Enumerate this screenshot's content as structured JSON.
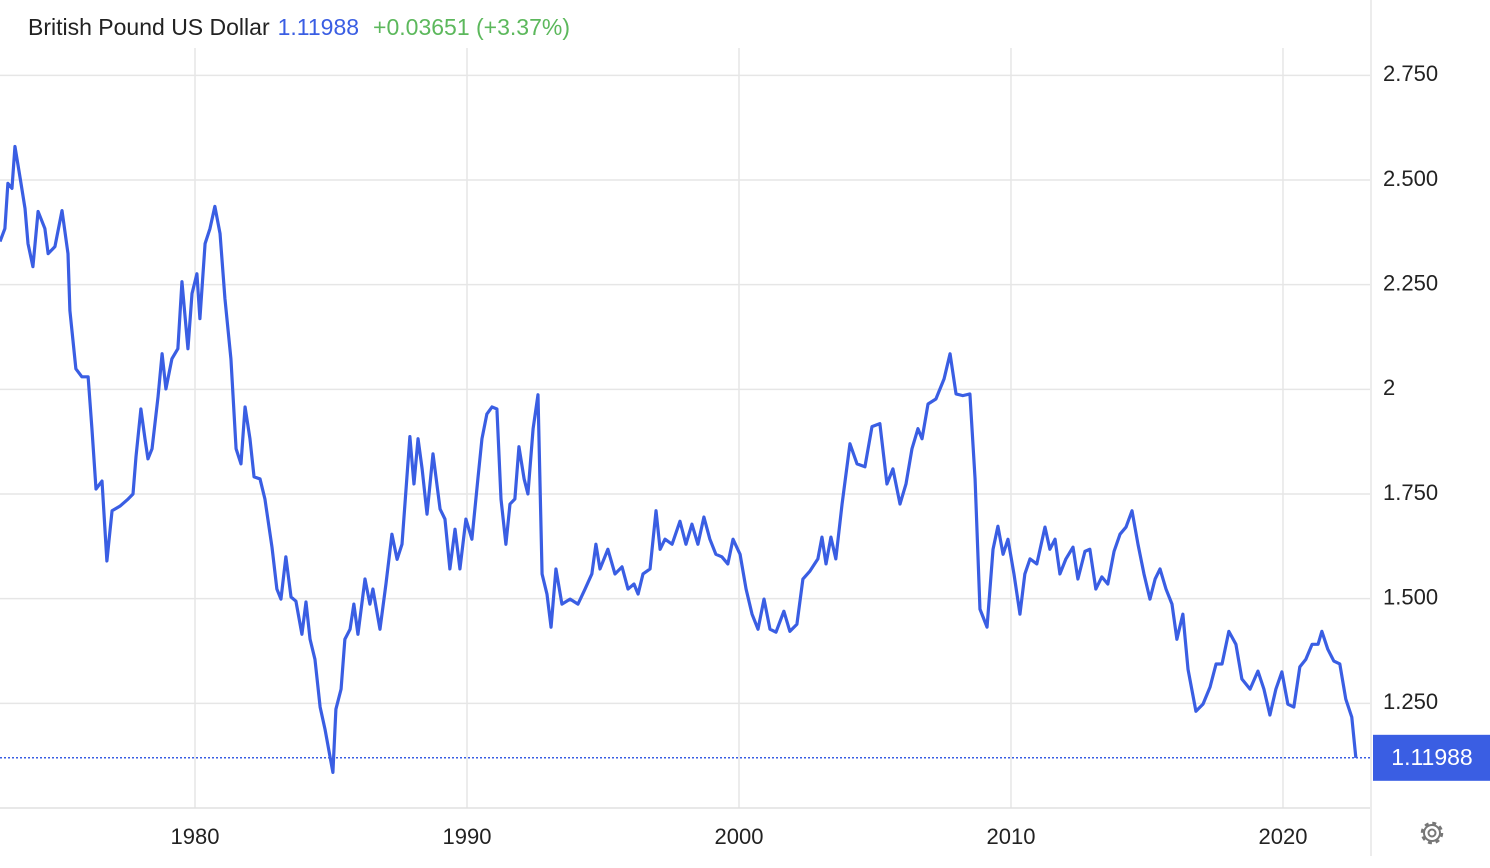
{
  "chart_data": {
    "type": "line",
    "title": "British Pound US Dollar",
    "price": 1.11988,
    "change": "+0.03651 (+3.37%)",
    "xlim": [
      1972.83,
      2023.2
    ],
    "xticks": [
      1980,
      1990,
      2000,
      2010,
      2020
    ],
    "ylim": [
      1.0,
      2.93
    ],
    "yticks": [
      {
        "value": 1.25,
        "label": "1.250"
      },
      {
        "value": 1.5,
        "label": "1.500"
      },
      {
        "value": 1.75,
        "label": "1.750"
      },
      2,
      {
        "value": 2.25,
        "label": "2.250"
      },
      {
        "value": 2.5,
        "label": "2.500"
      },
      {
        "value": 2.75,
        "label": "2.750"
      }
    ],
    "grid": true,
    "series": [
      {
        "color": "#3a5ee3",
        "x": [
          1972.83,
          1973.01,
          1973.12,
          1973.27,
          1973.38,
          1973.57,
          1973.75,
          1973.86,
          1974.04,
          1974.23,
          1974.48,
          1974.6,
          1974.85,
          1975.11,
          1975.33,
          1975.4,
          1975.62,
          1975.84,
          1976.07,
          1976.21,
          1976.36,
          1976.58,
          1976.76,
          1976.95,
          1977.24,
          1977.54,
          1977.72,
          1977.83,
          1978.01,
          1978.16,
          1978.27,
          1978.42,
          1978.64,
          1978.79,
          1978.93,
          1979.15,
          1979.37,
          1979.52,
          1979.74,
          1979.89,
          1980.07,
          1980.18,
          1980.37,
          1980.55,
          1980.73,
          1980.92,
          1981.1,
          1981.32,
          1981.51,
          1981.69,
          1981.84,
          1982.02,
          1982.17,
          1982.39,
          1982.57,
          1982.83,
          1983.01,
          1983.16,
          1983.34,
          1983.53,
          1983.71,
          1983.93,
          1984.08,
          1984.23,
          1984.41,
          1984.6,
          1984.78,
          1985.07,
          1985.18,
          1985.37,
          1985.51,
          1985.7,
          1985.84,
          1985.99,
          1986.25,
          1986.43,
          1986.54,
          1986.8,
          1987.02,
          1987.24,
          1987.43,
          1987.61,
          1987.9,
          1988.05,
          1988.2,
          1988.35,
          1988.53,
          1988.75,
          1989.01,
          1989.19,
          1989.37,
          1989.56,
          1989.74,
          1989.96,
          1990.18,
          1990.4,
          1990.55,
          1990.73,
          1990.92,
          1991.1,
          1991.25,
          1991.43,
          1991.58,
          1991.76,
          1991.91,
          1992.1,
          1992.24,
          1992.43,
          1992.61,
          1992.76,
          1992.94,
          1993.09,
          1993.27,
          1993.49,
          1993.79,
          1994.08,
          1994.34,
          1994.59,
          1994.74,
          1994.89,
          1995.18,
          1995.44,
          1995.7,
          1995.92,
          1996.14,
          1996.29,
          1996.47,
          1996.73,
          1996.95,
          1997.1,
          1997.28,
          1997.54,
          1997.83,
          1998.05,
          1998.27,
          1998.49,
          1998.71,
          1998.93,
          1999.15,
          1999.37,
          1999.59,
          1999.78,
          2000.04,
          2000.26,
          2000.48,
          2000.7,
          2000.92,
          2001.14,
          2001.36,
          2001.65,
          2001.87,
          2002.13,
          2002.35,
          2002.61,
          2002.9,
          2003.05,
          2003.2,
          2003.38,
          2003.56,
          2003.79,
          2004.08,
          2004.34,
          2004.63,
          2004.89,
          2005.18,
          2005.44,
          2005.66,
          2005.92,
          2006.14,
          2006.36,
          2006.58,
          2006.73,
          2006.95,
          2007.24,
          2007.54,
          2007.76,
          2007.98,
          2008.23,
          2008.49,
          2008.68,
          2008.86,
          2009.12,
          2009.34,
          2009.52,
          2009.71,
          2009.89,
          2010.11,
          2010.33,
          2010.51,
          2010.7,
          2010.95,
          2011.25,
          2011.43,
          2011.62,
          2011.8,
          2012.02,
          2012.28,
          2012.46,
          2012.72,
          2012.9,
          2013.12,
          2013.34,
          2013.56,
          2013.79,
          2014.01,
          2014.23,
          2014.45,
          2014.67,
          2014.89,
          2015.11,
          2015.3,
          2015.48,
          2015.7,
          2015.92,
          2016.1,
          2016.32,
          2016.51,
          2016.8,
          2017.06,
          2017.32,
          2017.54,
          2017.76,
          2018.01,
          2018.27,
          2018.49,
          2018.79,
          2019.08,
          2019.3,
          2019.52,
          2019.74,
          2019.96,
          2020.18,
          2020.4,
          2020.62,
          2020.84,
          2021.07,
          2021.29,
          2021.43,
          2021.65,
          2021.87,
          2022.09,
          2022.31,
          2022.53,
          2022.68
        ],
        "values": [
          2.353,
          2.384,
          2.492,
          2.48,
          2.58,
          2.505,
          2.432,
          2.348,
          2.293,
          2.425,
          2.384,
          2.324,
          2.341,
          2.427,
          2.324,
          2.188,
          2.049,
          2.03,
          2.03,
          1.906,
          1.762,
          1.781,
          1.59,
          1.71,
          1.721,
          1.738,
          1.75,
          1.839,
          1.953,
          1.882,
          1.834,
          1.858,
          1.982,
          2.085,
          2.001,
          2.073,
          2.097,
          2.257,
          2.097,
          2.229,
          2.276,
          2.169,
          2.348,
          2.384,
          2.437,
          2.372,
          2.217,
          2.073,
          1.858,
          1.822,
          1.958,
          1.882,
          1.791,
          1.786,
          1.738,
          1.623,
          1.523,
          1.499,
          1.6,
          1.504,
          1.494,
          1.415,
          1.492,
          1.403,
          1.355,
          1.241,
          1.188,
          1.085,
          1.236,
          1.284,
          1.403,
          1.427,
          1.487,
          1.415,
          1.547,
          1.487,
          1.523,
          1.427,
          1.535,
          1.654,
          1.594,
          1.63,
          1.887,
          1.774,
          1.882,
          1.81,
          1.702,
          1.846,
          1.714,
          1.69,
          1.571,
          1.666,
          1.571,
          1.69,
          1.642,
          1.786,
          1.882,
          1.941,
          1.958,
          1.953,
          1.738,
          1.63,
          1.726,
          1.738,
          1.863,
          1.786,
          1.75,
          1.906,
          1.987,
          1.559,
          1.511,
          1.432,
          1.571,
          1.487,
          1.499,
          1.487,
          1.523,
          1.559,
          1.63,
          1.571,
          1.618,
          1.559,
          1.576,
          1.523,
          1.535,
          1.511,
          1.559,
          1.571,
          1.71,
          1.618,
          1.642,
          1.63,
          1.685,
          1.63,
          1.678,
          1.63,
          1.695,
          1.642,
          1.606,
          1.6,
          1.583,
          1.642,
          1.606,
          1.523,
          1.463,
          1.427,
          1.499,
          1.427,
          1.42,
          1.47,
          1.422,
          1.439,
          1.547,
          1.566,
          1.595,
          1.647,
          1.583,
          1.647,
          1.595,
          1.726,
          1.87,
          1.822,
          1.815,
          1.911,
          1.918,
          1.774,
          1.81,
          1.726,
          1.774,
          1.858,
          1.906,
          1.882,
          1.965,
          1.977,
          2.025,
          2.085,
          1.989,
          1.985,
          1.989,
          1.786,
          1.475,
          1.432,
          1.618,
          1.673,
          1.606,
          1.642,
          1.559,
          1.463,
          1.559,
          1.595,
          1.583,
          1.671,
          1.618,
          1.642,
          1.559,
          1.595,
          1.623,
          1.547,
          1.613,
          1.618,
          1.523,
          1.552,
          1.535,
          1.613,
          1.654,
          1.671,
          1.71,
          1.63,
          1.559,
          1.499,
          1.547,
          1.571,
          1.523,
          1.487,
          1.403,
          1.463,
          1.331,
          1.231,
          1.248,
          1.289,
          1.344,
          1.344,
          1.422,
          1.391,
          1.308,
          1.284,
          1.327,
          1.284,
          1.222,
          1.284,
          1.325,
          1.248,
          1.241,
          1.337,
          1.355,
          1.391,
          1.391,
          1.422,
          1.379,
          1.351,
          1.344,
          1.26,
          1.217,
          1.11988
        ]
      }
    ]
  }
}
